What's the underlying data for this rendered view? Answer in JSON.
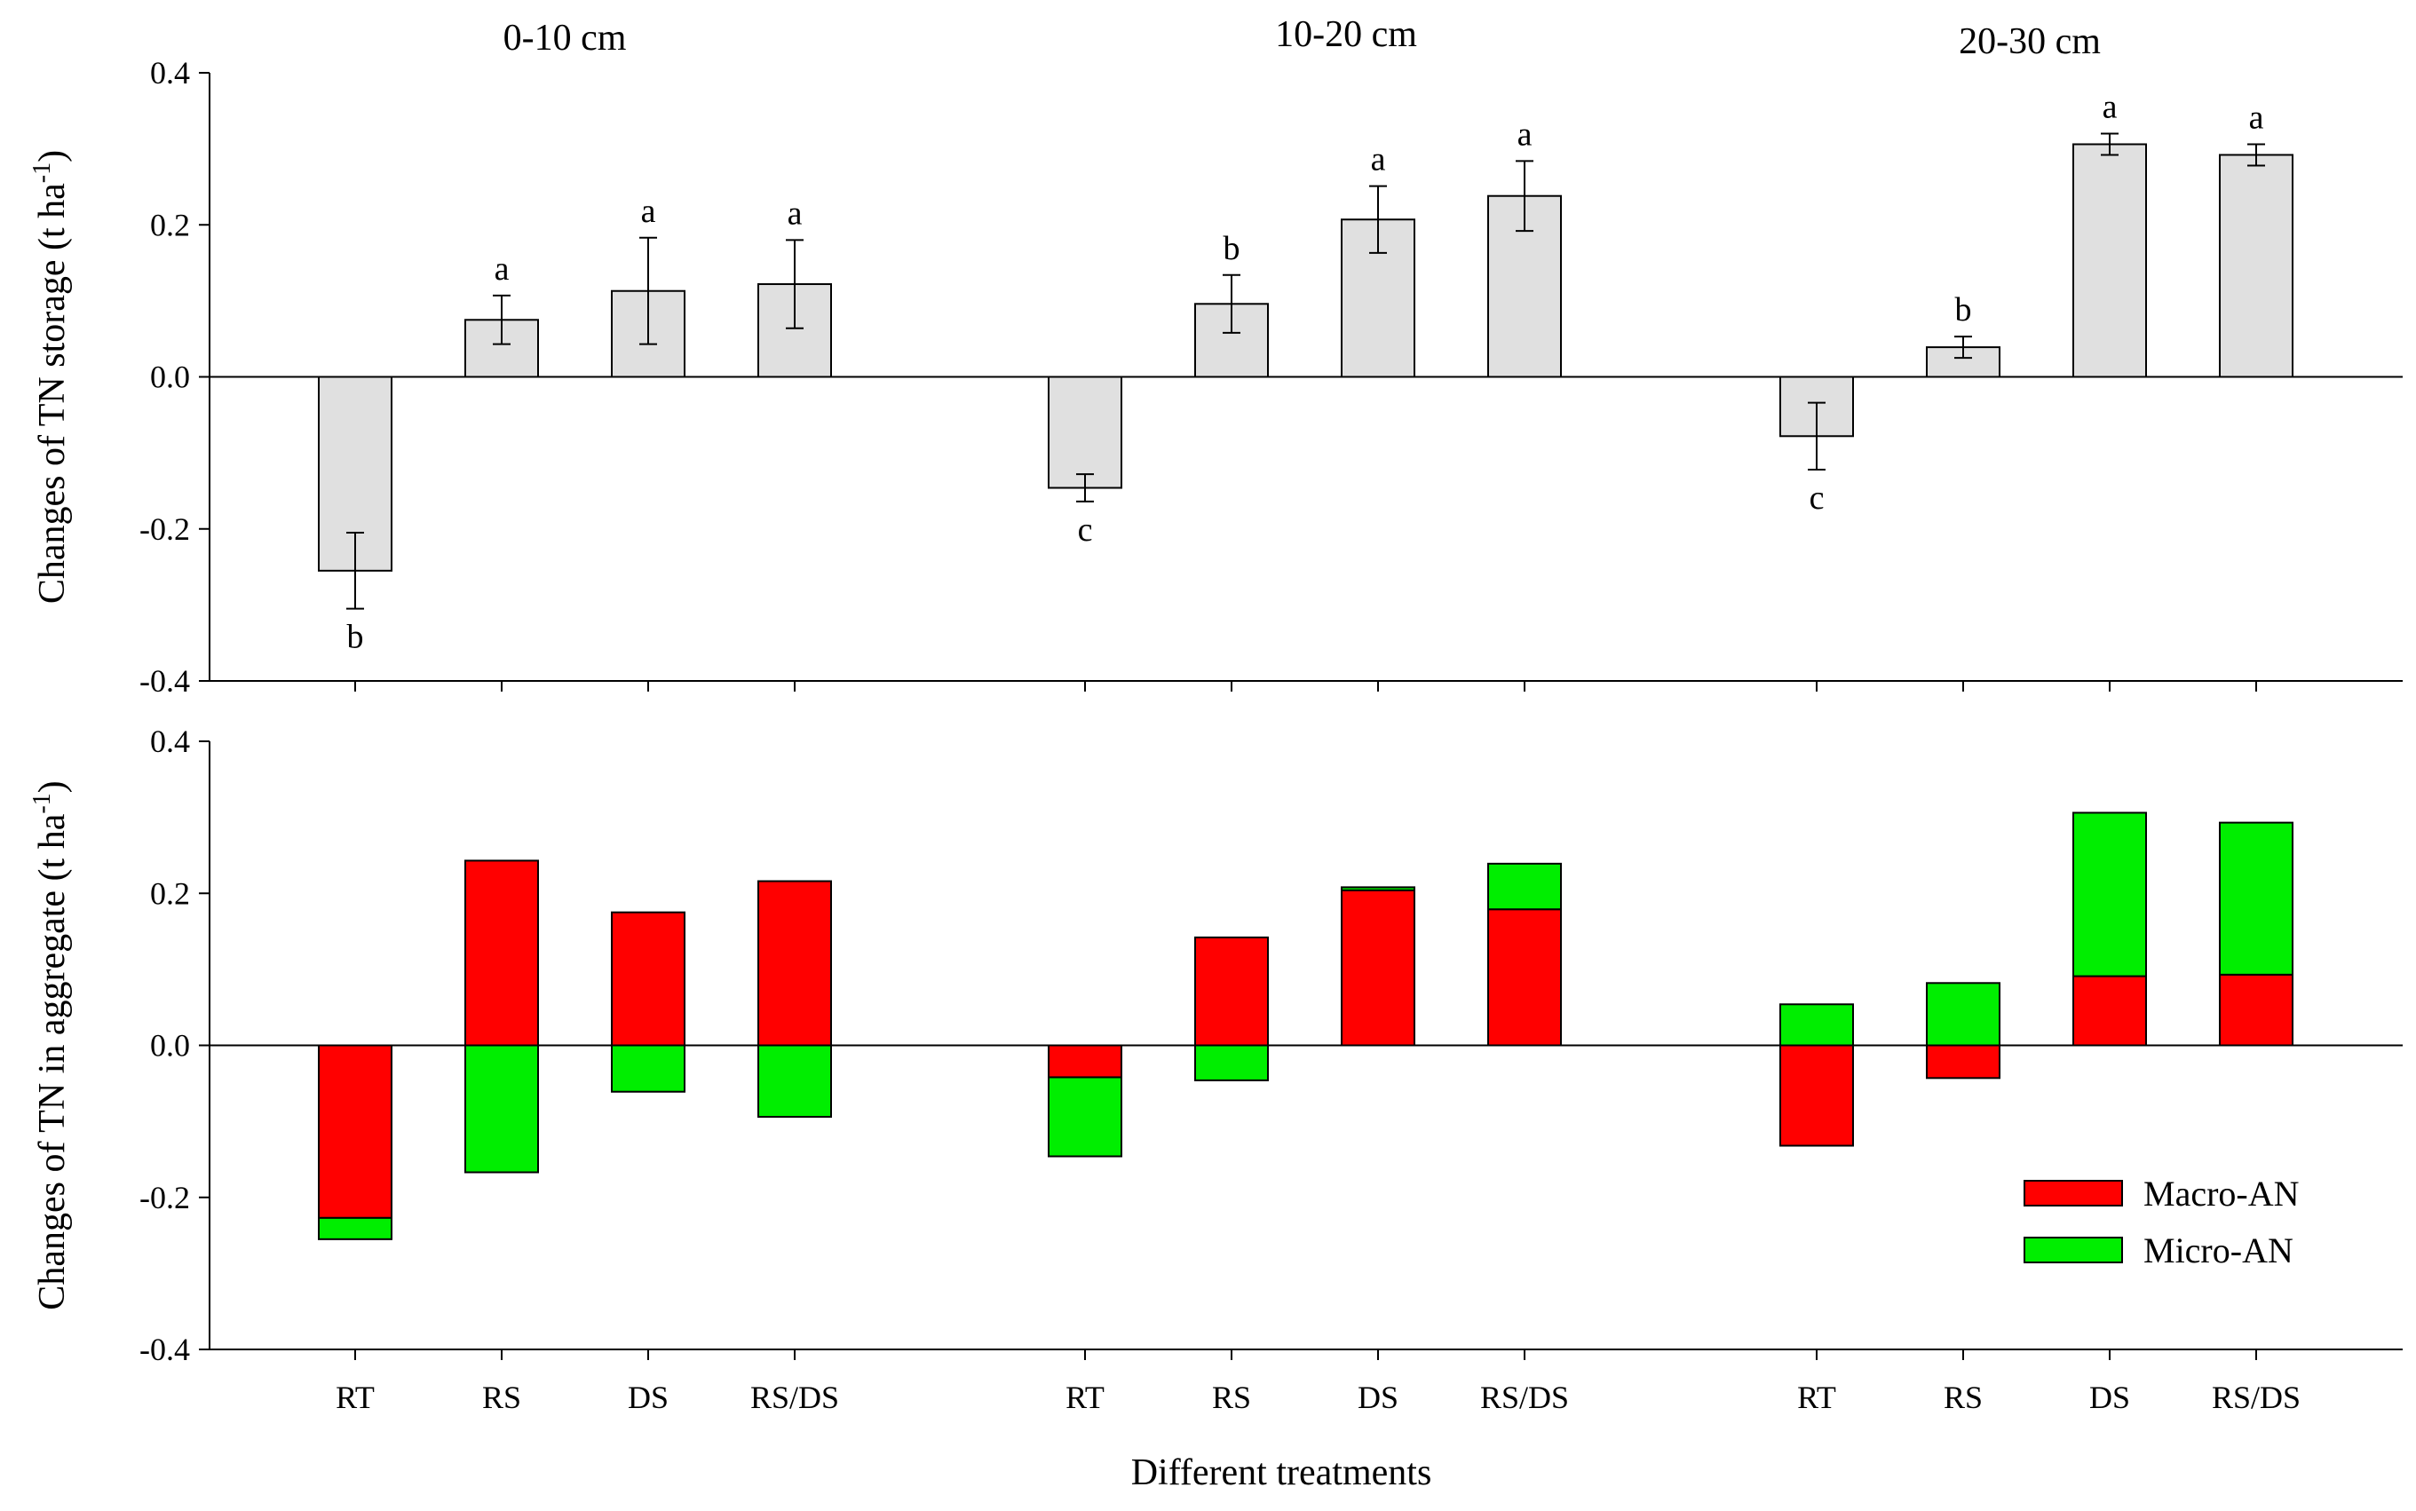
{
  "chart_data": [
    {
      "type": "bar",
      "panel": "top",
      "ylabel": "Changes of TN storage (t ha",
      "ylabel_sup": "-1",
      "ylabel_end": ")",
      "ylim": [
        -0.4,
        0.4
      ],
      "yticks": [
        -0.4,
        -0.2,
        0.0,
        0.2,
        0.4
      ],
      "ytick_labels": [
        "-0.4",
        "-0.2",
        "0.0",
        "0.2",
        "0.4"
      ],
      "groups": [
        {
          "title": "0-10 cm",
          "categories": [
            "RT",
            "RS",
            "DS",
            "RS/DS"
          ],
          "values": [
            -0.255,
            0.075,
            0.113,
            0.122
          ],
          "errors": [
            0.05,
            0.032,
            0.07,
            0.058
          ],
          "letters": [
            "b",
            "a",
            "a",
            "a"
          ]
        },
        {
          "title": "10-20 cm",
          "categories": [
            "RT",
            "RS",
            "DS",
            "RS/DS"
          ],
          "values": [
            -0.146,
            0.096,
            0.207,
            0.238
          ],
          "errors": [
            0.018,
            0.038,
            0.044,
            0.046
          ],
          "letters": [
            "c",
            "b",
            "a",
            "a"
          ]
        },
        {
          "title": "20-30 cm",
          "categories": [
            "RT",
            "RS",
            "DS",
            "RS/DS"
          ],
          "values": [
            -0.078,
            0.039,
            0.306,
            0.292
          ],
          "errors": [
            0.044,
            0.014,
            0.014,
            0.014
          ],
          "letters": [
            "c",
            "b",
            "a",
            "a"
          ]
        }
      ],
      "bar_color": "#e0e0e0"
    },
    {
      "type": "bar",
      "panel": "bottom",
      "ylabel": "Changes of TN in aggregate (t ha",
      "ylabel_sup": "-1",
      "ylabel_end": ")",
      "xlabel": "Different treatments",
      "ylim": [
        -0.4,
        0.4
      ],
      "yticks": [
        -0.4,
        -0.2,
        0.0,
        0.2,
        0.4
      ],
      "ytick_labels": [
        "-0.4",
        "-0.2",
        "0.0",
        "0.2",
        "0.4"
      ],
      "categories": [
        "RT",
        "RS",
        "DS",
        "RS/DS",
        "RT",
        "RS",
        "DS",
        "RS/DS",
        "RT",
        "RS",
        "DS",
        "RS/DS"
      ],
      "series": [
        {
          "name": "Macro-AN",
          "color": "#ff0000",
          "values": [
            -0.227,
            0.243,
            0.175,
            0.216,
            -0.042,
            0.142,
            0.204,
            0.179,
            -0.132,
            -0.043,
            0.091,
            0.093
          ]
        },
        {
          "name": "Micro-AN",
          "color": "#00ee00",
          "values": [
            -0.028,
            -0.167,
            -0.061,
            -0.094,
            -0.104,
            -0.046,
            0.004,
            0.06,
            0.054,
            0.082,
            0.215,
            0.2
          ]
        }
      ],
      "legend": "bottom-right"
    }
  ]
}
